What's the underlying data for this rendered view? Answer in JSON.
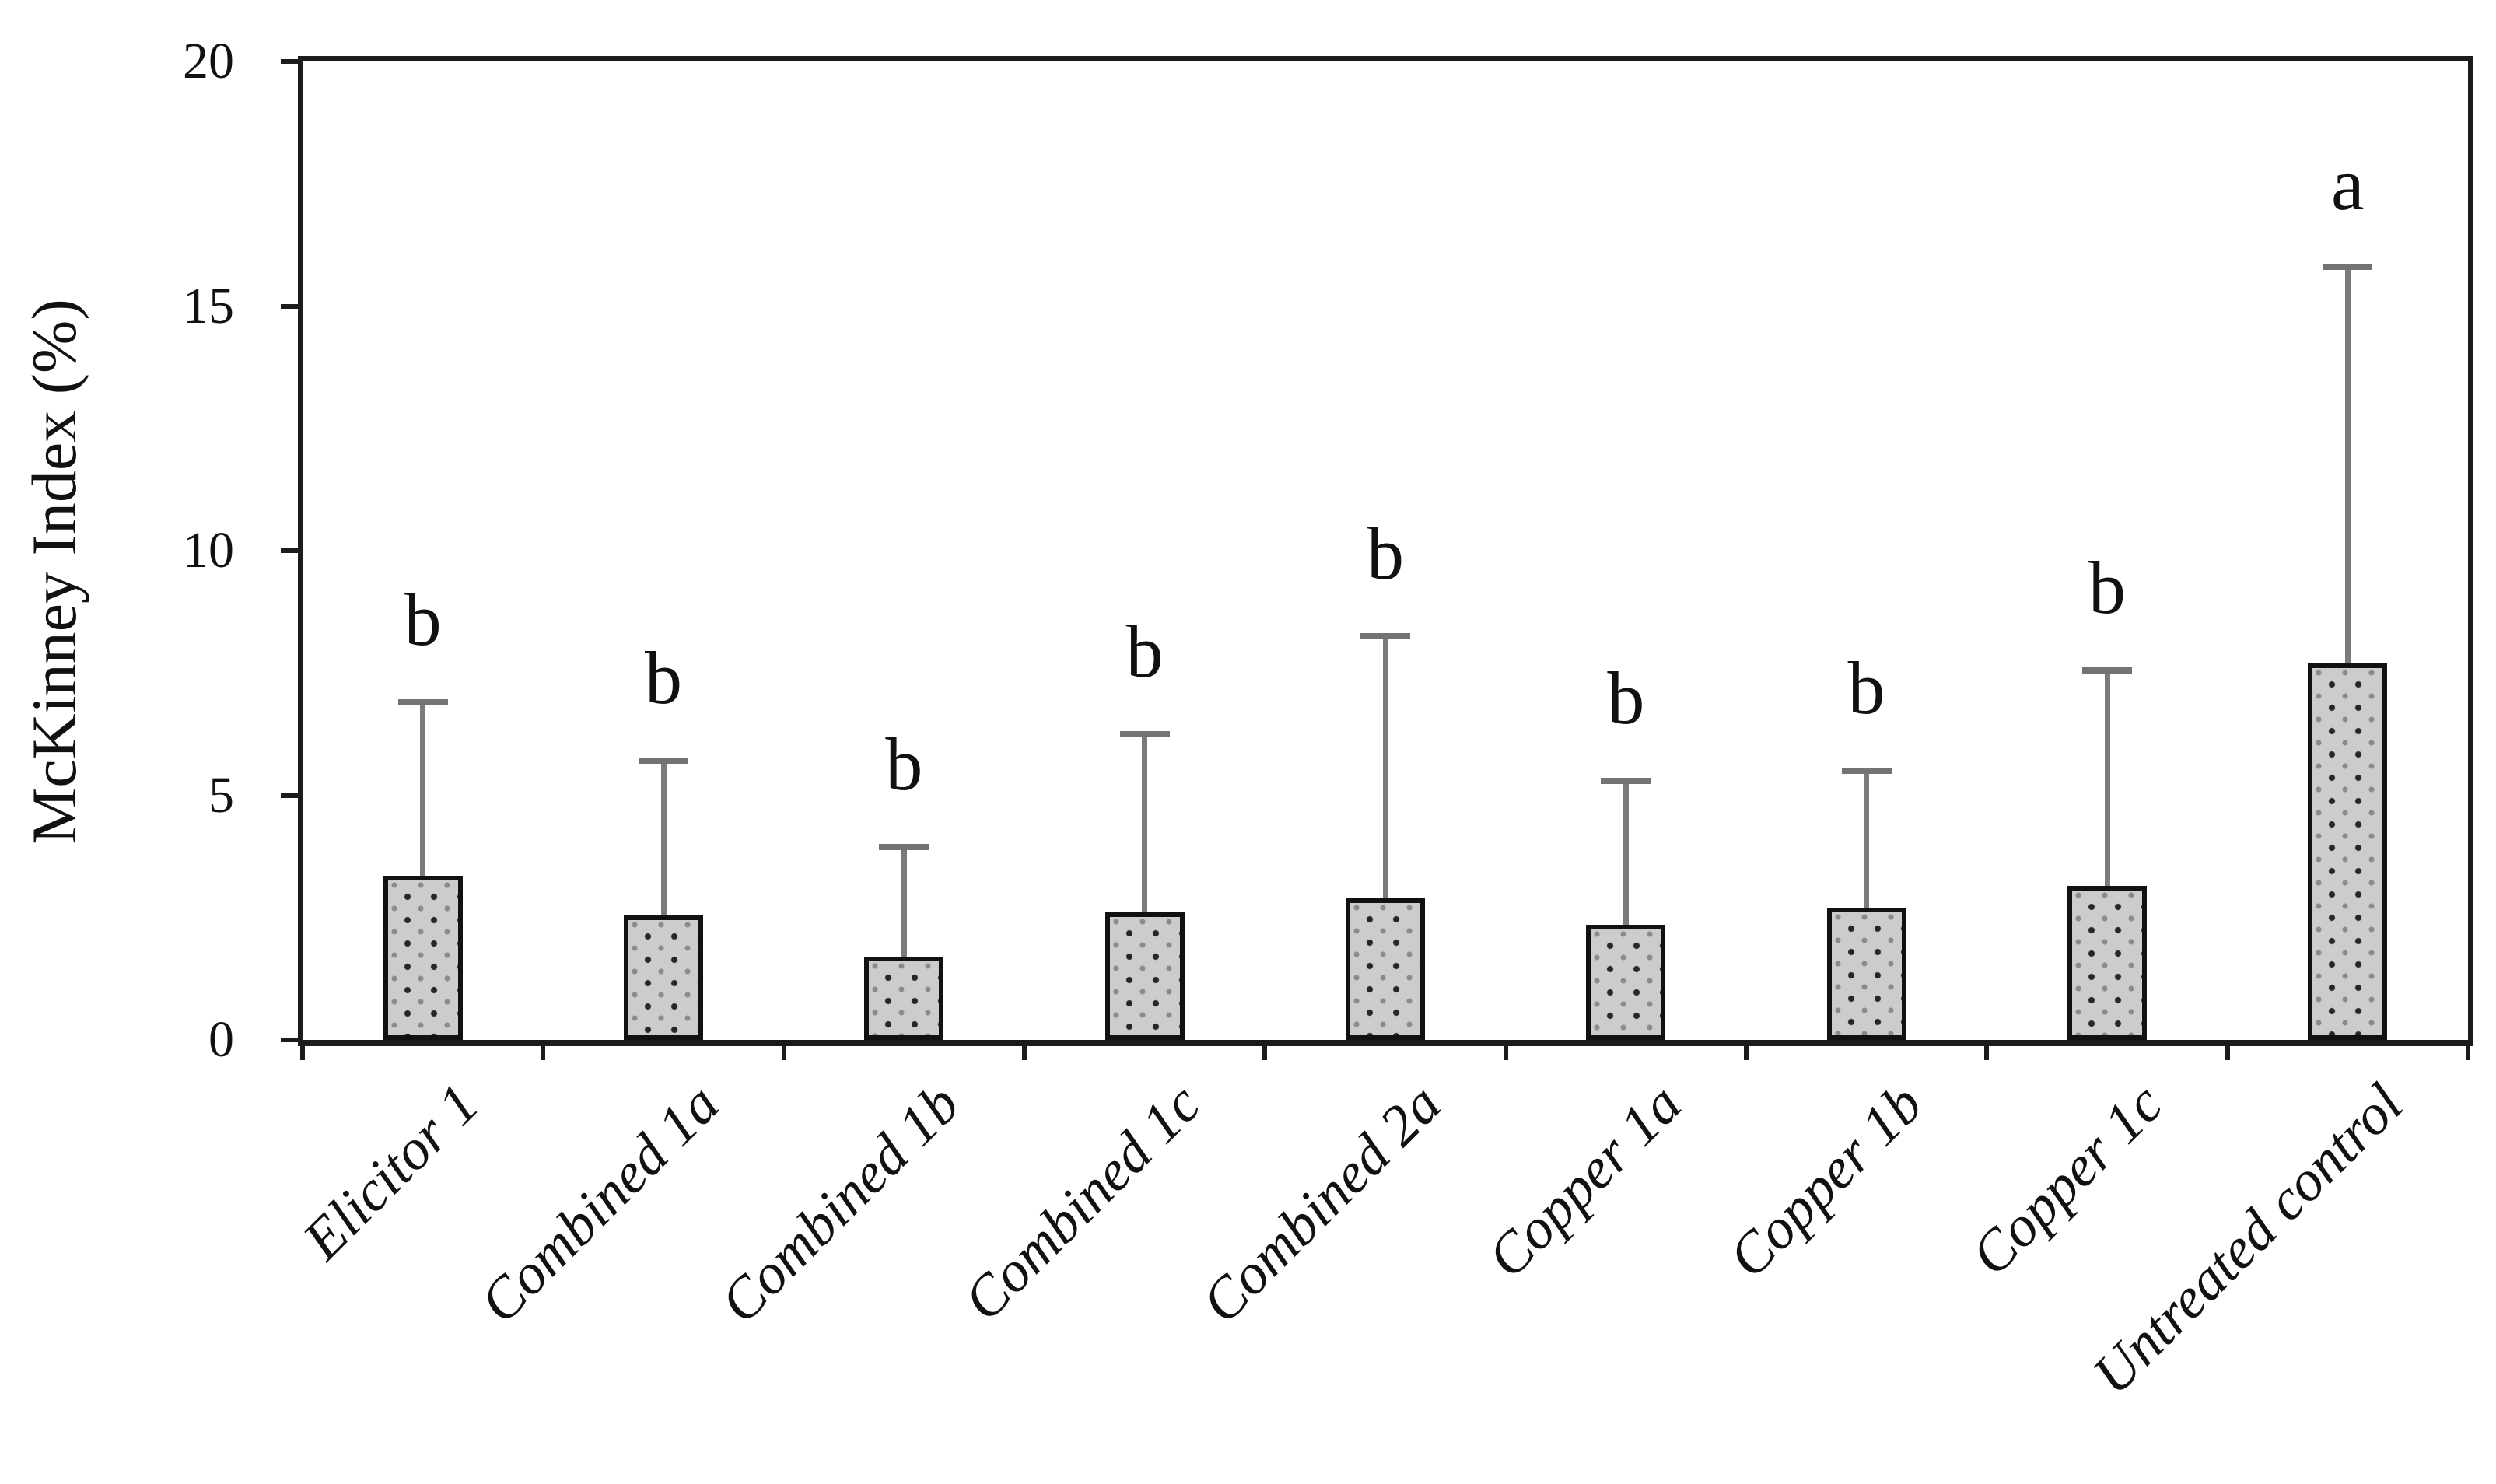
{
  "chart_data": {
    "type": "bar",
    "title": "",
    "xlabel": "",
    "ylabel": "McKinney Index (%)",
    "ylim": [
      0,
      20
    ],
    "yticks": [
      0,
      5,
      10,
      15,
      20
    ],
    "grid": "off",
    "legend": "none",
    "bar_fill": "gray dotted pattern",
    "bar_color": "#cccccc",
    "axis_color": "#1c1c1c",
    "error_bar_color": "#7b7b7b",
    "categories": [
      "Elicitor 1",
      "Combined 1a",
      "Combined 1b",
      "Combined 1c",
      "Combined 2a",
      "Copper 1a",
      "Copper 1b",
      "Copper 1c",
      "Untreated control"
    ],
    "values": [
      3.35,
      2.55,
      1.7,
      2.6,
      2.9,
      2.35,
      2.7,
      3.15,
      7.7
    ],
    "error_upper_sd": [
      3.55,
      3.15,
      2.25,
      3.65,
      5.35,
      2.95,
      2.8,
      4.4,
      8.1
    ],
    "error_bar_tops": [
      6.9,
      5.7,
      3.95,
      6.25,
      8.25,
      5.3,
      5.5,
      7.55,
      15.8
    ],
    "significance_letters": [
      "b",
      "b",
      "b",
      "b",
      "b",
      "b",
      "b",
      "b",
      "a"
    ]
  }
}
